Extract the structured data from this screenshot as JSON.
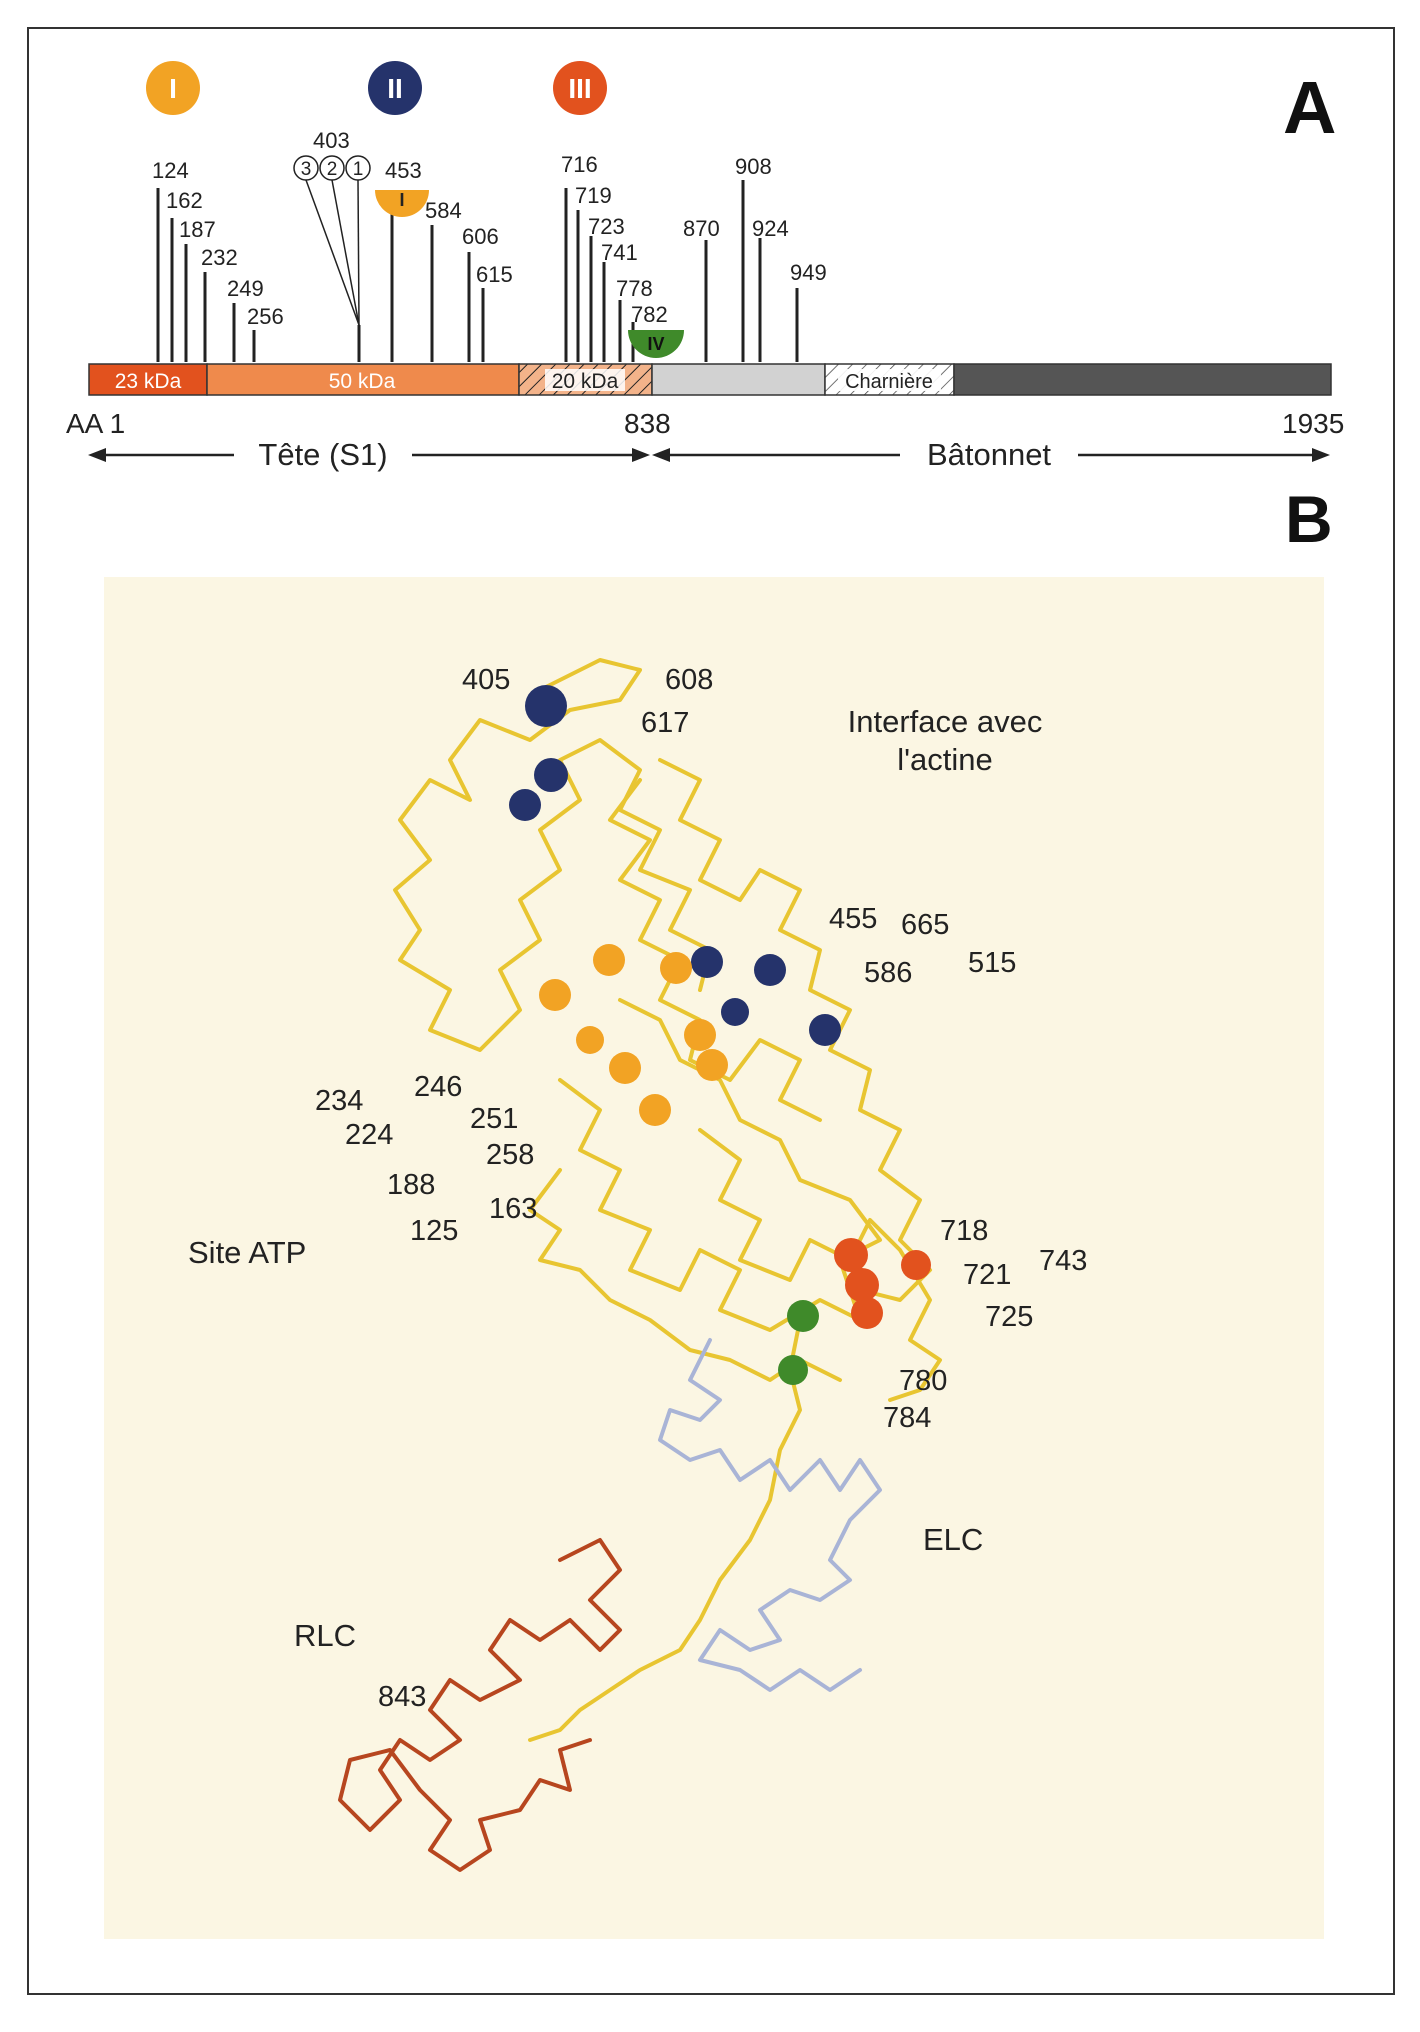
{
  "panel_a": {
    "label": "A",
    "groups": [
      {
        "numeral": "I",
        "color": "#f2a324"
      },
      {
        "numeral": "II",
        "color": "#25336b"
      },
      {
        "numeral": "III",
        "color": "#e2521e"
      }
    ],
    "mutations": [
      "124",
      "162",
      "187",
      "232",
      "249",
      "256",
      "403",
      "453",
      "584",
      "606",
      "615",
      "716",
      "719",
      "723",
      "741",
      "778",
      "782",
      "870",
      "908",
      "924",
      "949"
    ],
    "circled": [
      "3",
      "2",
      "1"
    ],
    "badge_i": "I",
    "badge_iv": "IV",
    "segments": [
      "23 kDa",
      "50 kDa",
      "20 kDa",
      "",
      "Charnière",
      ""
    ],
    "axis": {
      "start": "AA 1",
      "mid": "838",
      "end": "1935"
    },
    "regions": {
      "head": "Tête (S1)",
      "rod": "Bâtonnet"
    }
  },
  "panel_b": {
    "label": "B",
    "labels": [
      "405",
      "608",
      "617",
      "Interface avec",
      "l'actine",
      "455",
      "665",
      "586",
      "515",
      "234",
      "246",
      "224",
      "251",
      "258",
      "188",
      "163",
      "125",
      "Site ATP",
      "718",
      "743",
      "721",
      "725",
      "780",
      "784",
      "ELC",
      "RLC",
      "843"
    ]
  },
  "colors": {
    "group_i": "#f2a324",
    "group_ii": "#25336b",
    "group_iii": "#e2521e",
    "group_iv": "#3f8a2a",
    "seg_23": "#e2521e",
    "seg_50": "#ef8a4c",
    "rod_light": "#cfcfcf",
    "rod_dark": "#555555",
    "panel_bg": "#fbf6e3",
    "heavy_chain": "#e8c531",
    "elc": "#a9b4d6",
    "rlc": "#b7461f"
  }
}
